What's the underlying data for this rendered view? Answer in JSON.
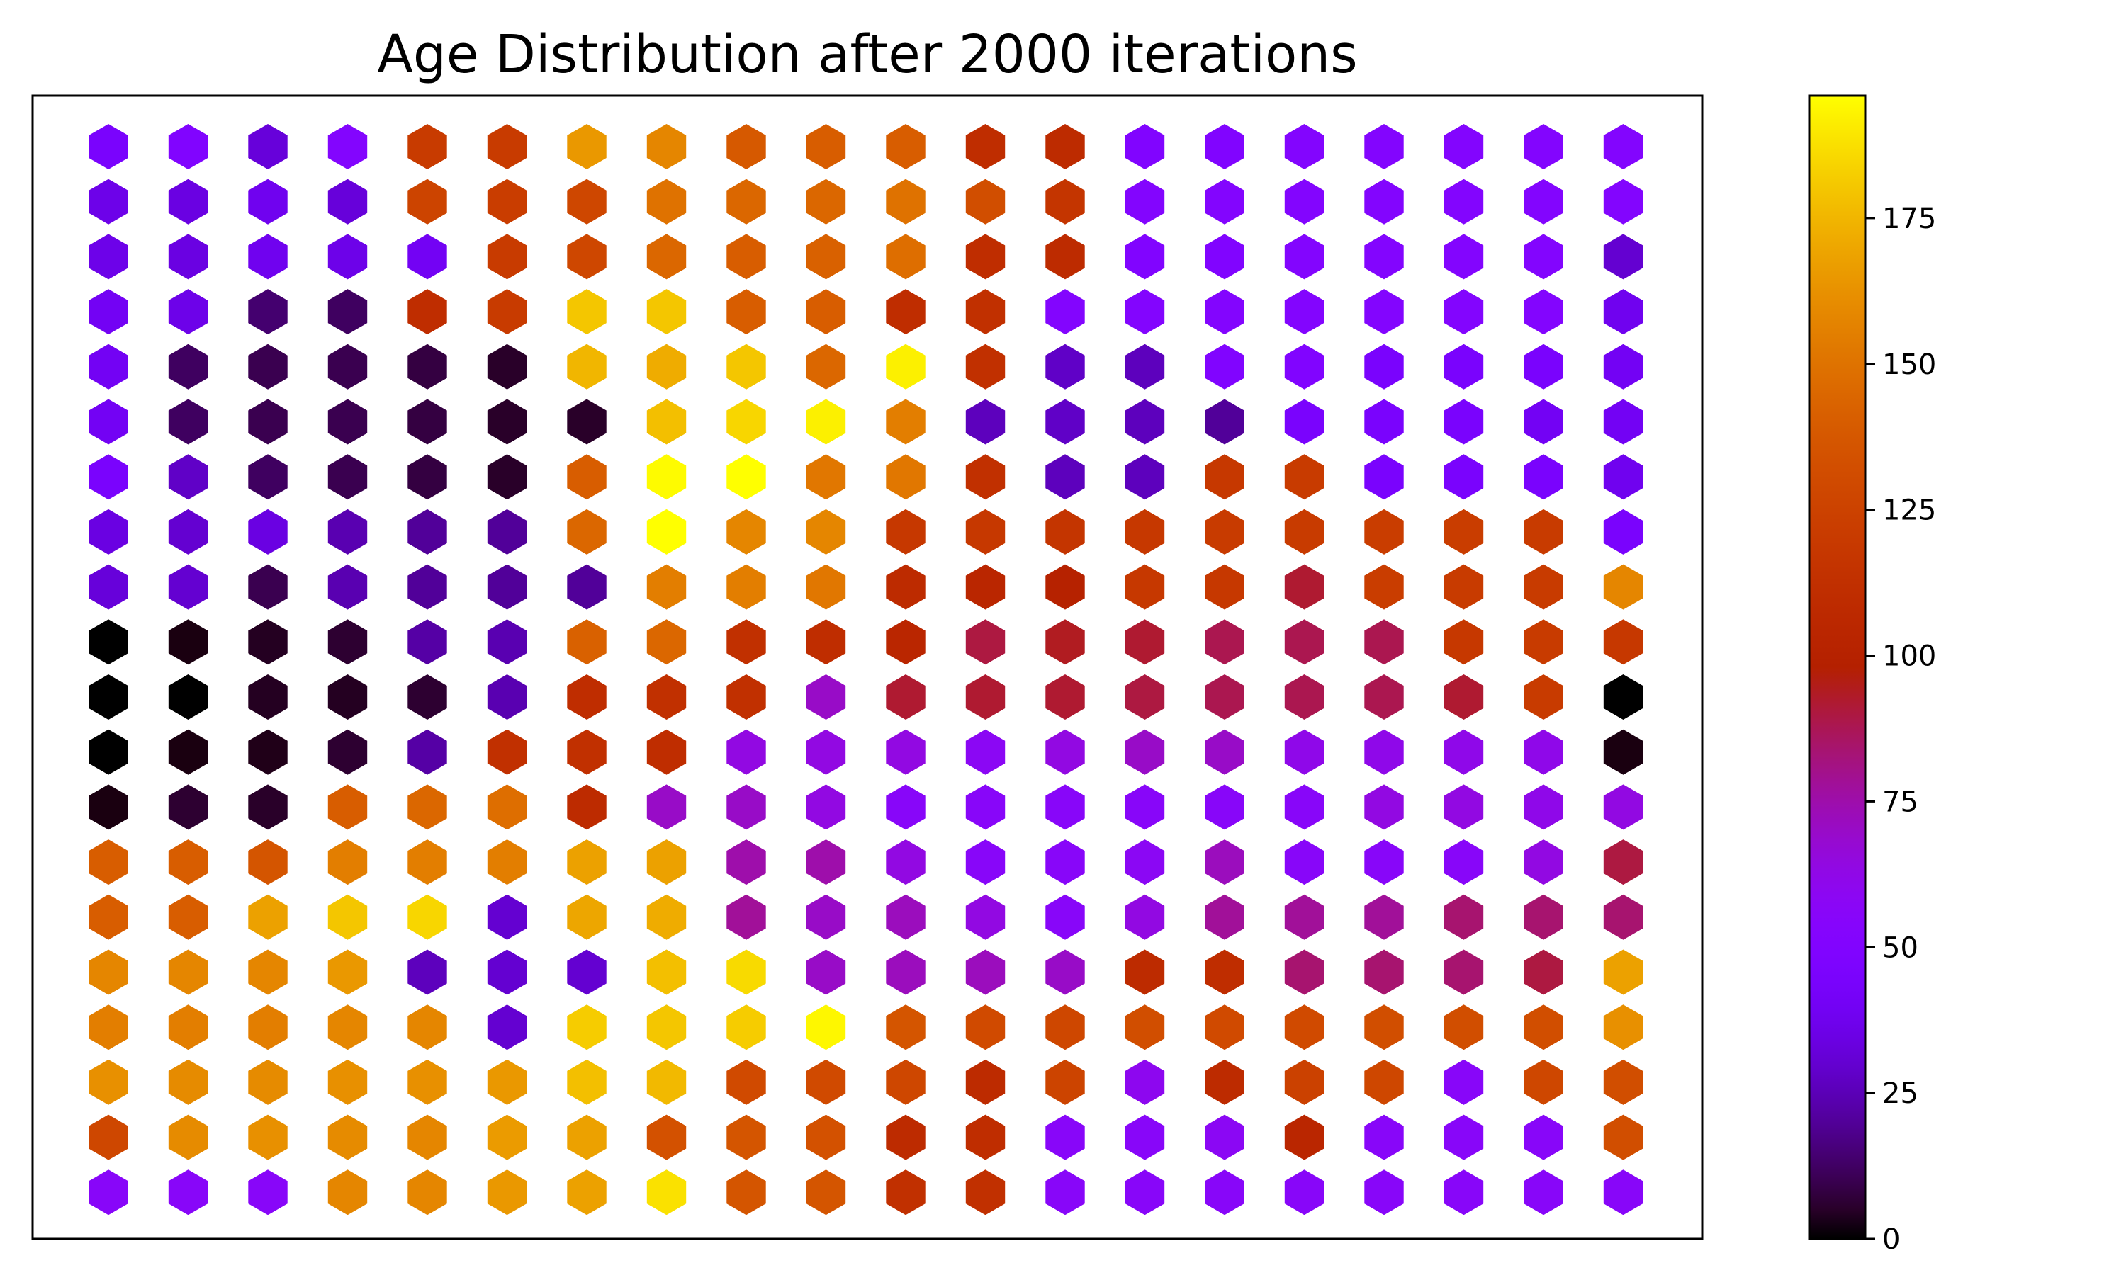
{
  "chart_data": {
    "type": "heatmap",
    "shape": "hexagon",
    "title": "Age Distribution after 2000 iterations",
    "columns": 20,
    "rows": 20,
    "colormap": "gnuplot",
    "x_axis_visible": false,
    "y_axis_visible": false,
    "colorbar": {
      "location": "right",
      "range": [
        0,
        196
      ],
      "ticks": [
        0,
        25,
        50,
        75,
        100,
        125,
        150,
        175
      ],
      "tick_labels": [
        "0",
        "25",
        "50",
        "75",
        "100",
        "125",
        "150",
        "175"
      ]
    },
    "values": [
      [
        45,
        50,
        32,
        52,
        120,
        120,
        165,
        158,
        138,
        140,
        140,
        110,
        108,
        50,
        50,
        52,
        52,
        52,
        52,
        52
      ],
      [
        36,
        34,
        38,
        32,
        126,
        122,
        128,
        150,
        145,
        145,
        150,
        132,
        116,
        52,
        52,
        52,
        52,
        52,
        52,
        52
      ],
      [
        36,
        34,
        38,
        36,
        40,
        120,
        128,
        145,
        140,
        142,
        148,
        110,
        108,
        50,
        50,
        52,
        52,
        52,
        52,
        30
      ],
      [
        40,
        36,
        14,
        12,
        110,
        120,
        180,
        180,
        140,
        140,
        110,
        112,
        52,
        52,
        52,
        52,
        52,
        52,
        52,
        38
      ],
      [
        40,
        12,
        10,
        10,
        8,
        5,
        175,
        172,
        180,
        145,
        192,
        112,
        28,
        26,
        50,
        50,
        45,
        45,
        45,
        40
      ],
      [
        40,
        12,
        10,
        10,
        8,
        5,
        5,
        178,
        185,
        192,
        155,
        26,
        28,
        26,
        20,
        45,
        45,
        45,
        40,
        40
      ],
      [
        45,
        28,
        12,
        10,
        8,
        5,
        140,
        195,
        196,
        152,
        152,
        112,
        26,
        26,
        118,
        120,
        45,
        45,
        45,
        38
      ],
      [
        34,
        30,
        34,
        24,
        20,
        20,
        145,
        196,
        158,
        158,
        118,
        118,
        116,
        118,
        120,
        120,
        122,
        122,
        120,
        45
      ],
      [
        32,
        30,
        10,
        24,
        20,
        20,
        20,
        155,
        155,
        152,
        108,
        104,
        100,
        118,
        118,
        92,
        122,
        120,
        120,
        158
      ],
      [
        0,
        2,
        4,
        6,
        22,
        24,
        142,
        145,
        112,
        110,
        104,
        90,
        94,
        92,
        88,
        88,
        88,
        118,
        120,
        118
      ],
      [
        0,
        0,
        4,
        4,
        6,
        24,
        110,
        112,
        112,
        70,
        92,
        92,
        92,
        90,
        88,
        88,
        88,
        92,
        120,
        0
      ],
      [
        0,
        2,
        3,
        6,
        22,
        112,
        112,
        110,
        64,
        64,
        64,
        58,
        64,
        70,
        70,
        62,
        62,
        62,
        62,
        2
      ],
      [
        2,
        6,
        5,
        140,
        145,
        148,
        108,
        70,
        70,
        64,
        56,
        56,
        56,
        56,
        56,
        56,
        64,
        64,
        62,
        64
      ],
      [
        140,
        140,
        136,
        155,
        155,
        155,
        168,
        168,
        75,
        75,
        64,
        56,
        56,
        58,
        72,
        56,
        56,
        56,
        64,
        90
      ],
      [
        140,
        140,
        168,
        180,
        185,
        30,
        170,
        172,
        78,
        70,
        72,
        64,
        56,
        64,
        78,
        78,
        78,
        84,
        84,
        84
      ],
      [
        158,
        158,
        158,
        165,
        26,
        30,
        30,
        178,
        186,
        70,
        72,
        72,
        70,
        108,
        110,
        84,
        84,
        84,
        90,
        168
      ],
      [
        155,
        155,
        155,
        158,
        158,
        30,
        182,
        180,
        182,
        194,
        136,
        130,
        128,
        132,
        130,
        130,
        132,
        132,
        132,
        162
      ],
      [
        162,
        160,
        160,
        162,
        162,
        165,
        178,
        176,
        130,
        130,
        128,
        108,
        126,
        60,
        108,
        124,
        128,
        56,
        128,
        132
      ],
      [
        128,
        160,
        162,
        160,
        158,
        166,
        168,
        134,
        136,
        134,
        108,
        110,
        56,
        56,
        58,
        104,
        56,
        56,
        56,
        132
      ],
      [
        56,
        56,
        56,
        158,
        158,
        165,
        168,
        188,
        136,
        136,
        112,
        112,
        56,
        56,
        56,
        56,
        56,
        56,
        56,
        56
      ]
    ]
  }
}
